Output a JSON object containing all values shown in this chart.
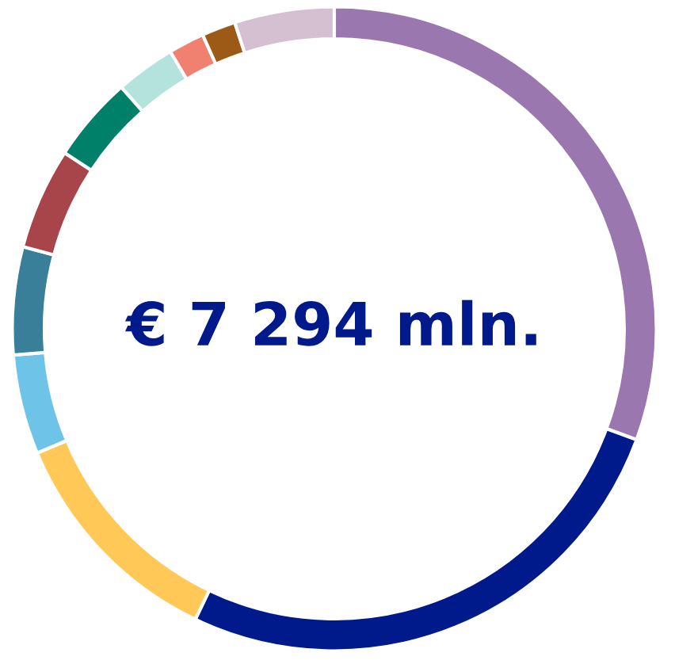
{
  "chart_data": {
    "type": "donut",
    "categories": [
      null,
      null,
      null,
      null,
      null,
      null,
      null,
      null,
      null,
      null,
      null
    ],
    "values": [
      30.6,
      26.5,
      11.6,
      5,
      5.4,
      5.1,
      4.3,
      3,
      1.8,
      1.7,
      5
    ],
    "colors": [
      "#9b77b0",
      "#001a8c",
      "#ffc857",
      "#6ec4e8",
      "#3a7f9a",
      "#a8454a",
      "#008068",
      "#b3e3dc",
      "#f08070",
      "#9c5a16",
      "#d4c0d0"
    ],
    "annotations": [
      "€ 7 294 mln."
    ],
    "legend": false
  }
}
